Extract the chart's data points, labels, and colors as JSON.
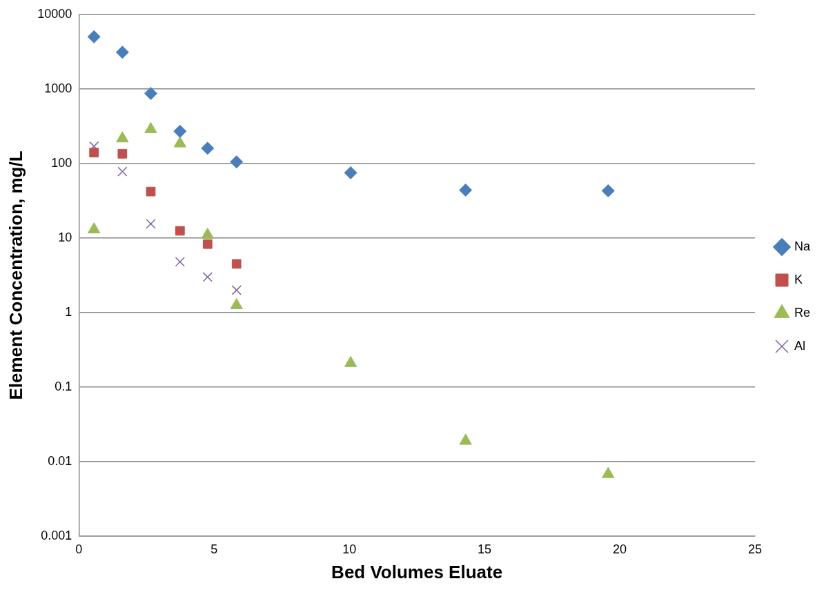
{
  "chart_data": {
    "type": "scatter",
    "xlabel": "Bed Volumes Eluate",
    "ylabel": "Element Concentration, mg/L",
    "x": [
      0.56,
      1.61,
      2.66,
      3.74,
      4.76,
      5.83,
      10.05,
      14.3,
      19.57
    ],
    "series": [
      {
        "name": "Na",
        "color": "#4a7ebb",
        "marker": "diamond",
        "values": [
          5000,
          3100,
          870,
          270,
          160,
          105,
          75,
          44,
          43
        ]
      },
      {
        "name": "K",
        "color": "#c0504d",
        "marker": "square",
        "values": [
          140,
          135,
          42,
          12.5,
          8.3,
          4.5,
          null,
          null,
          null
        ]
      },
      {
        "name": "Re",
        "color": "#9bbb59",
        "marker": "triangle",
        "values": [
          13,
          216,
          287,
          185,
          11,
          1.25,
          0.21,
          0.019,
          0.0068
        ]
      },
      {
        "name": "Al",
        "color": "#8064a2",
        "marker": "cross",
        "values": [
          170,
          78,
          15.5,
          4.8,
          3,
          2,
          null,
          null,
          null
        ]
      }
    ],
    "xlim": [
      0,
      25
    ],
    "xticks": [
      0,
      5,
      10,
      15,
      20,
      25
    ],
    "ylim": [
      0.001,
      10000
    ],
    "yticks": [
      0.001,
      0.01,
      0.1,
      1,
      10,
      100,
      1000,
      10000
    ],
    "log": "y",
    "grid": "y",
    "legend": "right"
  }
}
